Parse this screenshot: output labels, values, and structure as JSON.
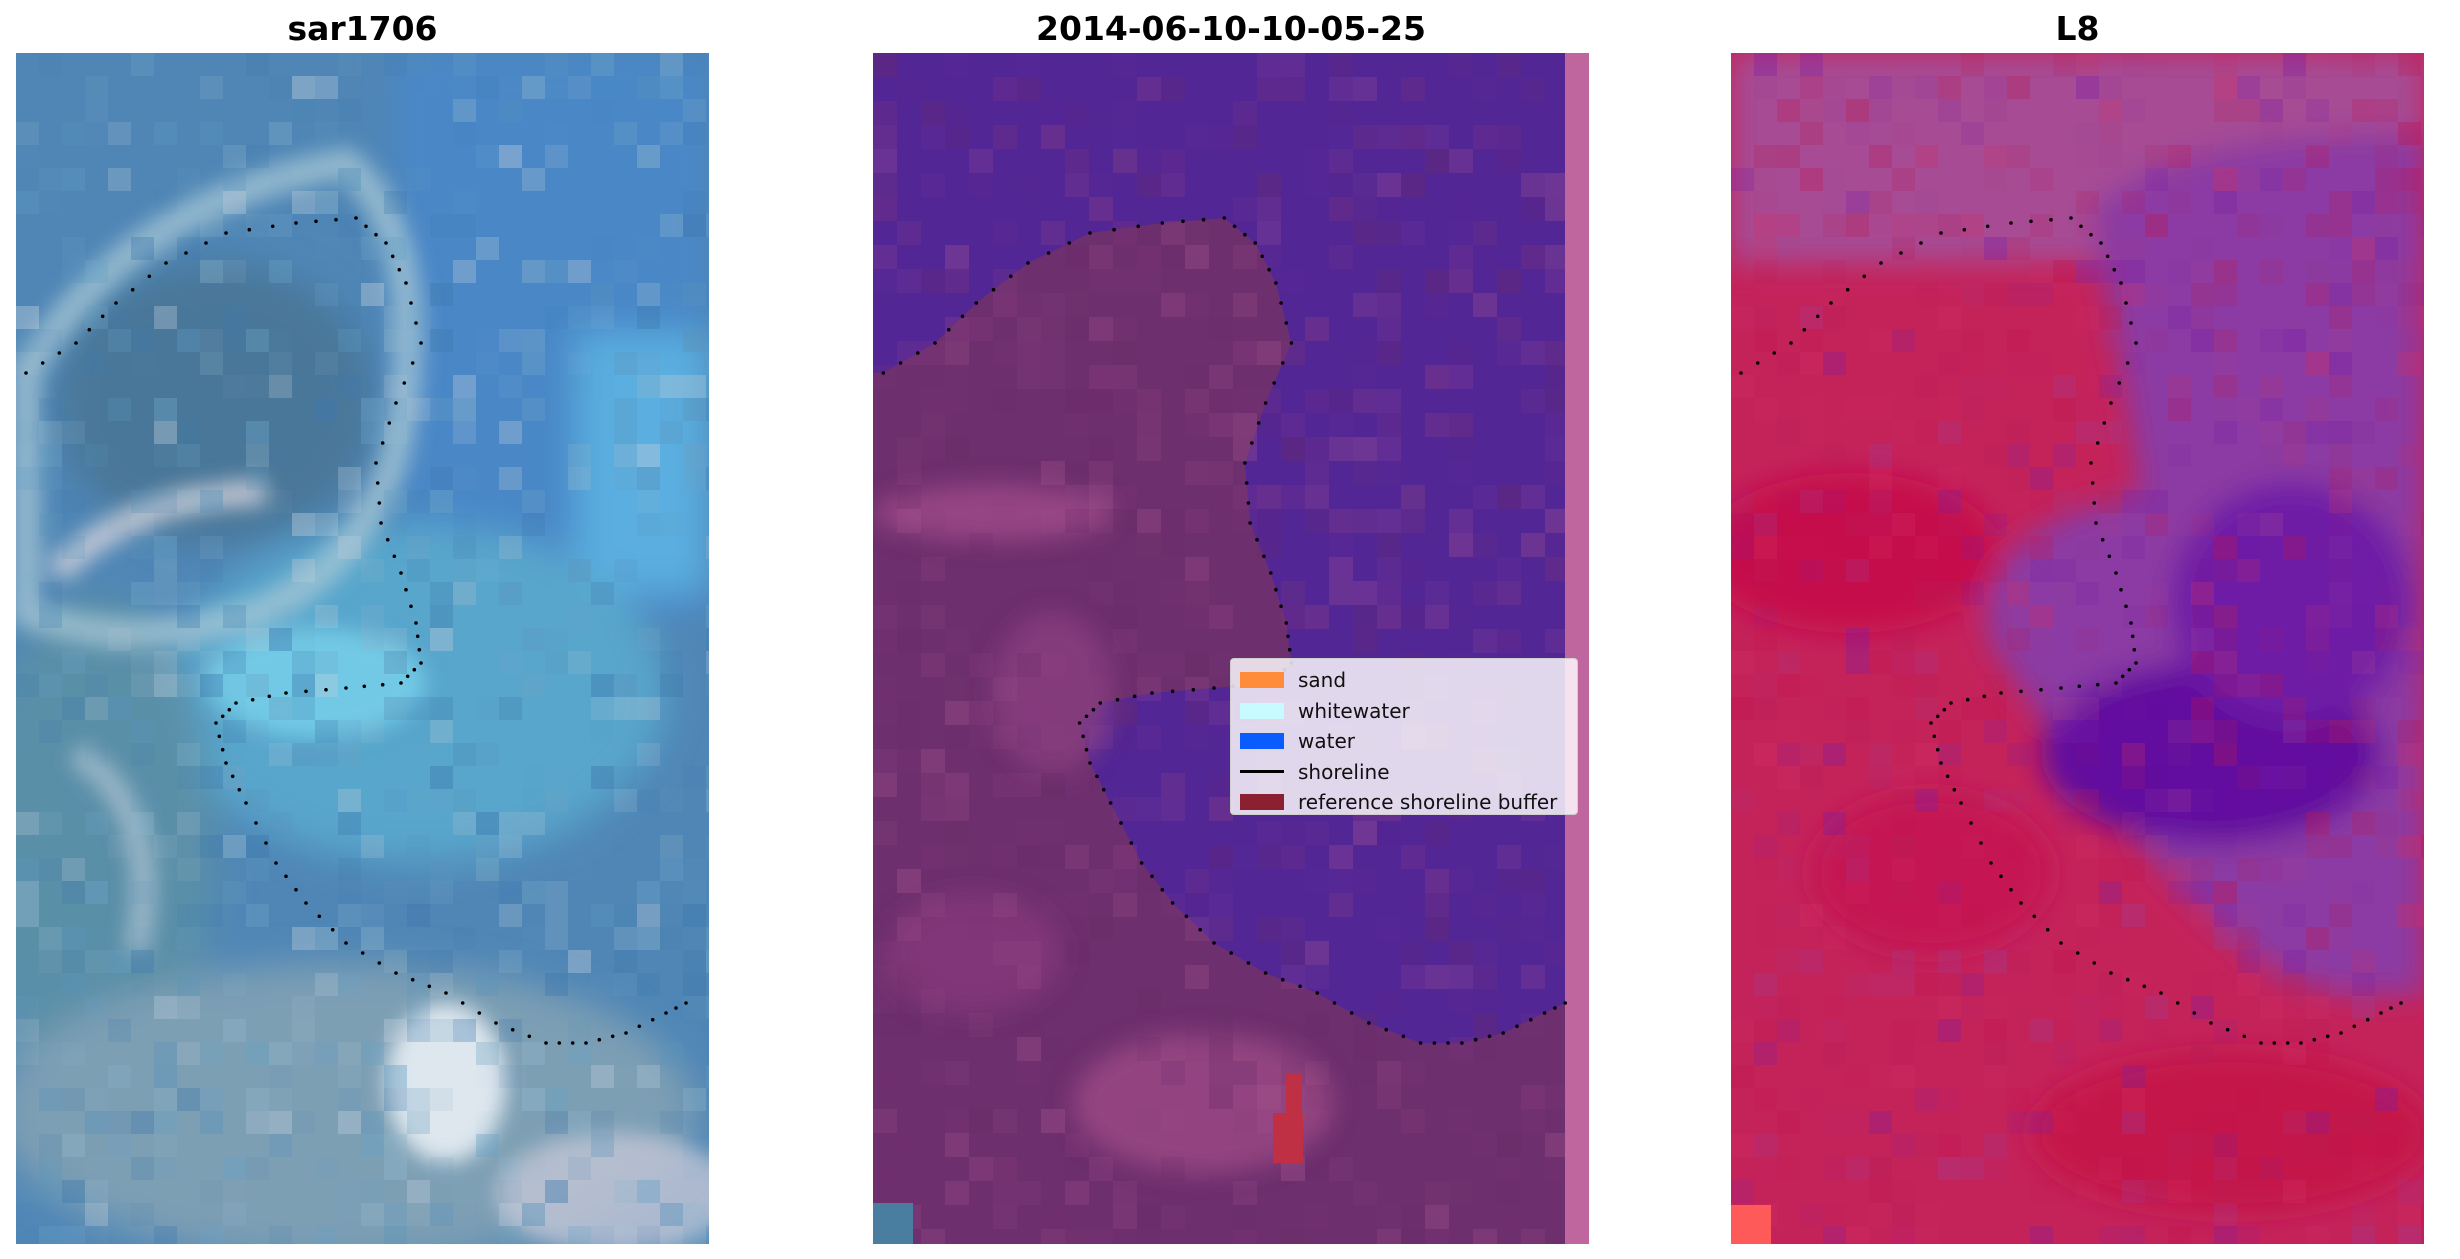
{
  "panels": [
    {
      "title": "sar1706",
      "base": "#5a8fb8",
      "accent": "#9fc9dc"
    },
    {
      "title": "2014-06-10-10-05-25",
      "base": "#532696",
      "land": "#6e2f6e"
    },
    {
      "title": "L8",
      "base": "#c2245a",
      "water": "#6a14a8"
    }
  ],
  "legend": {
    "items": [
      {
        "label": "sand",
        "color": "#ff8c3a",
        "kind": "patch"
      },
      {
        "label": "whitewater",
        "color": "#c8fbff",
        "kind": "patch"
      },
      {
        "label": "water",
        "color": "#0a5cff",
        "kind": "patch"
      },
      {
        "label": "shoreline",
        "color": "#000000",
        "kind": "line"
      },
      {
        "label": "reference shoreline buffer",
        "color": "#8b2030",
        "kind": "patch"
      }
    ]
  },
  "colors": {
    "shoreline_points": "#000000",
    "right_strip": "#c0669f",
    "buffer": "#c03045"
  }
}
